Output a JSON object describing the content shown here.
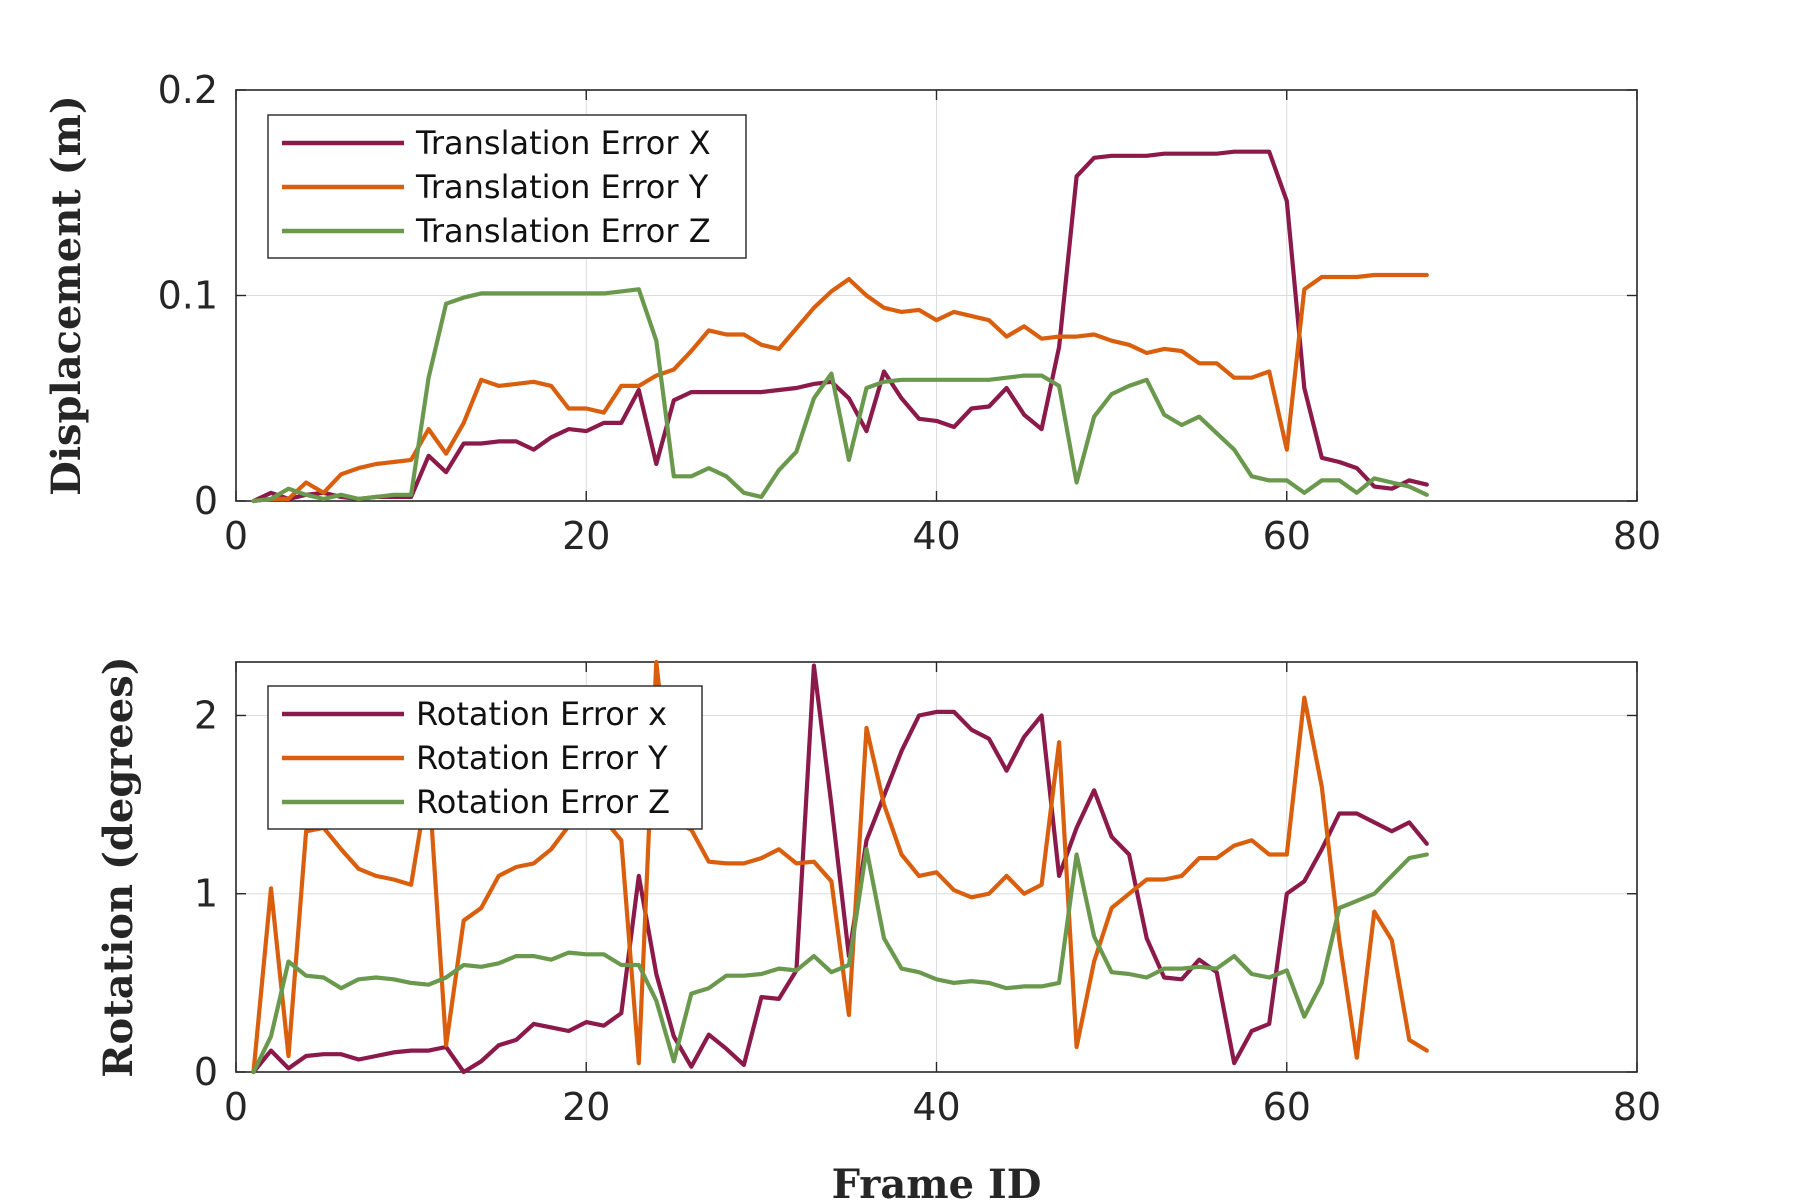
{
  "chart_data": [
    {
      "type": "line",
      "xlabel": "",
      "ylabel": "Displacement (m)",
      "xlim": [
        0,
        80
      ],
      "ylim": [
        0,
        0.2
      ],
      "xticks": [
        0,
        20,
        40,
        60,
        80
      ],
      "yticks": [
        0,
        0.1,
        0.2
      ],
      "xtick_labels": [
        "0",
        "20",
        "40",
        "60",
        "80"
      ],
      "ytick_labels": [
        "0",
        "0.1",
        "0.2"
      ],
      "grid": true,
      "legend_position": "top-left",
      "x": [
        1,
        2,
        3,
        4,
        5,
        6,
        7,
        8,
        9,
        10,
        11,
        12,
        13,
        14,
        15,
        16,
        17,
        18,
        19,
        20,
        21,
        22,
        23,
        24,
        25,
        26,
        27,
        28,
        29,
        30,
        31,
        32,
        33,
        34,
        35,
        36,
        37,
        38,
        39,
        40,
        41,
        42,
        43,
        44,
        45,
        46,
        47,
        48,
        49,
        50,
        51,
        52,
        53,
        54,
        55,
        56,
        57,
        58,
        59,
        60,
        61,
        62,
        63,
        64,
        65,
        66,
        67,
        68
      ],
      "series": [
        {
          "name": "Translation Error X",
          "color": "#8b1a4a",
          "values": [
            0,
            0.004,
            0.001,
            0.003,
            0.004,
            0.002,
            0.001,
            0.002,
            0.002,
            0.002,
            0.022,
            0.014,
            0.028,
            0.028,
            0.029,
            0.029,
            0.025,
            0.031,
            0.035,
            0.034,
            0.038,
            0.038,
            0.054,
            0.018,
            0.049,
            0.053,
            0.053,
            0.053,
            0.053,
            0.053,
            0.054,
            0.055,
            0.057,
            0.058,
            0.05,
            0.034,
            0.063,
            0.05,
            0.04,
            0.039,
            0.036,
            0.045,
            0.046,
            0.055,
            0.042,
            0.035,
            0.075,
            0.158,
            0.167,
            0.168,
            0.168,
            0.168,
            0.169,
            0.169,
            0.169,
            0.169,
            0.17,
            0.17,
            0.17,
            0.146,
            0.055,
            0.021,
            0.019,
            0.016,
            0.007,
            0.006,
            0.01,
            0.008
          ]
        },
        {
          "name": "Translation Error Y",
          "color": "#d95f0e",
          "values": [
            0,
            0.001,
            0.001,
            0.009,
            0.004,
            0.013,
            0.016,
            0.018,
            0.019,
            0.02,
            0.035,
            0.023,
            0.038,
            0.059,
            0.056,
            0.057,
            0.058,
            0.056,
            0.045,
            0.045,
            0.043,
            0.056,
            0.056,
            0.061,
            0.064,
            0.073,
            0.083,
            0.081,
            0.081,
            0.076,
            0.074,
            0.084,
            0.094,
            0.102,
            0.108,
            0.1,
            0.094,
            0.092,
            0.093,
            0.088,
            0.092,
            0.09,
            0.088,
            0.08,
            0.085,
            0.079,
            0.08,
            0.08,
            0.081,
            0.078,
            0.076,
            0.072,
            0.074,
            0.073,
            0.067,
            0.067,
            0.06,
            0.06,
            0.063,
            0.025,
            0.103,
            0.109,
            0.109,
            0.109,
            0.11,
            0.11,
            0.11,
            0.11
          ]
        },
        {
          "name": "Translation Error Z",
          "color": "#6a994e",
          "values": [
            0,
            0.001,
            0.006,
            0.003,
            0.001,
            0.003,
            0.001,
            0.002,
            0.003,
            0.003,
            0.06,
            0.096,
            0.099,
            0.101,
            0.101,
            0.101,
            0.101,
            0.101,
            0.101,
            0.101,
            0.101,
            0.102,
            0.103,
            0.078,
            0.012,
            0.012,
            0.016,
            0.012,
            0.004,
            0.002,
            0.015,
            0.024,
            0.05,
            0.062,
            0.02,
            0.055,
            0.058,
            0.059,
            0.059,
            0.059,
            0.059,
            0.059,
            0.059,
            0.06,
            0.061,
            0.061,
            0.056,
            0.009,
            0.041,
            0.052,
            0.056,
            0.059,
            0.042,
            0.037,
            0.041,
            0.033,
            0.025,
            0.012,
            0.01,
            0.01,
            0.004,
            0.01,
            0.01,
            0.004,
            0.011,
            0.009,
            0.007,
            0.003
          ]
        }
      ]
    },
    {
      "type": "line",
      "xlabel": "Frame ID",
      "ylabel": "Rotation (degrees)",
      "xlim": [
        0,
        80
      ],
      "ylim": [
        0,
        2.3
      ],
      "xticks": [
        0,
        20,
        40,
        60,
        80
      ],
      "yticks": [
        0,
        1,
        2
      ],
      "xtick_labels": [
        "0",
        "20",
        "40",
        "60",
        "80"
      ],
      "ytick_labels": [
        "0",
        "1",
        "2"
      ],
      "grid": true,
      "legend_position": "top-left",
      "x": [
        1,
        2,
        3,
        4,
        5,
        6,
        7,
        8,
        9,
        10,
        11,
        12,
        13,
        14,
        15,
        16,
        17,
        18,
        19,
        20,
        21,
        22,
        23,
        24,
        25,
        26,
        27,
        28,
        29,
        30,
        31,
        32,
        33,
        34,
        35,
        36,
        37,
        38,
        39,
        40,
        41,
        42,
        43,
        44,
        45,
        46,
        47,
        48,
        49,
        50,
        51,
        52,
        53,
        54,
        55,
        56,
        57,
        58,
        59,
        60,
        61,
        62,
        63,
        64,
        65,
        66,
        67,
        68
      ],
      "series": [
        {
          "name": "Rotation Error x",
          "color": "#8b1a4a",
          "values": [
            0,
            0.12,
            0.02,
            0.09,
            0.1,
            0.1,
            0.07,
            0.09,
            0.11,
            0.12,
            0.12,
            0.14,
            0,
            0.06,
            0.15,
            0.18,
            0.27,
            0.25,
            0.23,
            0.28,
            0.26,
            0.33,
            1.1,
            0.55,
            0.2,
            0.03,
            0.21,
            0.13,
            0.04,
            0.42,
            0.41,
            0.57,
            2.28,
            1.5,
            0.65,
            1.3,
            1.55,
            1.8,
            2.0,
            2.02,
            2.02,
            1.92,
            1.87,
            1.69,
            1.88,
            2.0,
            1.1,
            1.37,
            1.58,
            1.32,
            1.22,
            0.75,
            0.53,
            0.52,
            0.63,
            0.56,
            0.05,
            0.23,
            0.27,
            1.0,
            1.07,
            1.25,
            1.45,
            1.45,
            1.4,
            1.35,
            1.4,
            1.28
          ]
        },
        {
          "name": "Rotation Error Y",
          "color": "#d95f0e",
          "values": [
            0,
            1.03,
            0.09,
            1.35,
            1.37,
            1.25,
            1.14,
            1.1,
            1.08,
            1.05,
            1.65,
            0.15,
            0.85,
            0.92,
            1.1,
            1.15,
            1.17,
            1.25,
            1.38,
            1.45,
            1.42,
            1.3,
            0.05,
            2.3,
            1.4,
            1.36,
            1.18,
            1.17,
            1.17,
            1.2,
            1.25,
            1.17,
            1.18,
            1.07,
            0.32,
            1.93,
            1.5,
            1.22,
            1.1,
            1.12,
            1.02,
            0.98,
            1.0,
            1.1,
            1.0,
            1.05,
            1.85,
            0.14,
            0.62,
            0.92,
            1.0,
            1.08,
            1.08,
            1.1,
            1.2,
            1.2,
            1.27,
            1.3,
            1.22,
            1.22,
            2.1,
            1.6,
            0.74,
            0.08,
            0.9,
            0.74,
            0.18,
            0.12
          ]
        },
        {
          "name": "Rotation Error Z",
          "color": "#6a994e",
          "values": [
            0,
            0.2,
            0.62,
            0.54,
            0.53,
            0.47,
            0.52,
            0.53,
            0.52,
            0.5,
            0.49,
            0.53,
            0.6,
            0.59,
            0.61,
            0.65,
            0.65,
            0.63,
            0.67,
            0.66,
            0.66,
            0.6,
            0.6,
            0.4,
            0.06,
            0.44,
            0.47,
            0.54,
            0.54,
            0.55,
            0.58,
            0.57,
            0.65,
            0.56,
            0.6,
            1.25,
            0.75,
            0.58,
            0.56,
            0.52,
            0.5,
            0.51,
            0.5,
            0.47,
            0.48,
            0.48,
            0.5,
            1.22,
            0.76,
            0.56,
            0.55,
            0.53,
            0.58,
            0.58,
            0.59,
            0.58,
            0.65,
            0.55,
            0.53,
            0.57,
            0.31,
            0.5,
            0.92,
            0.96,
            1.0,
            1.1,
            1.2,
            1.22
          ]
        }
      ]
    }
  ]
}
